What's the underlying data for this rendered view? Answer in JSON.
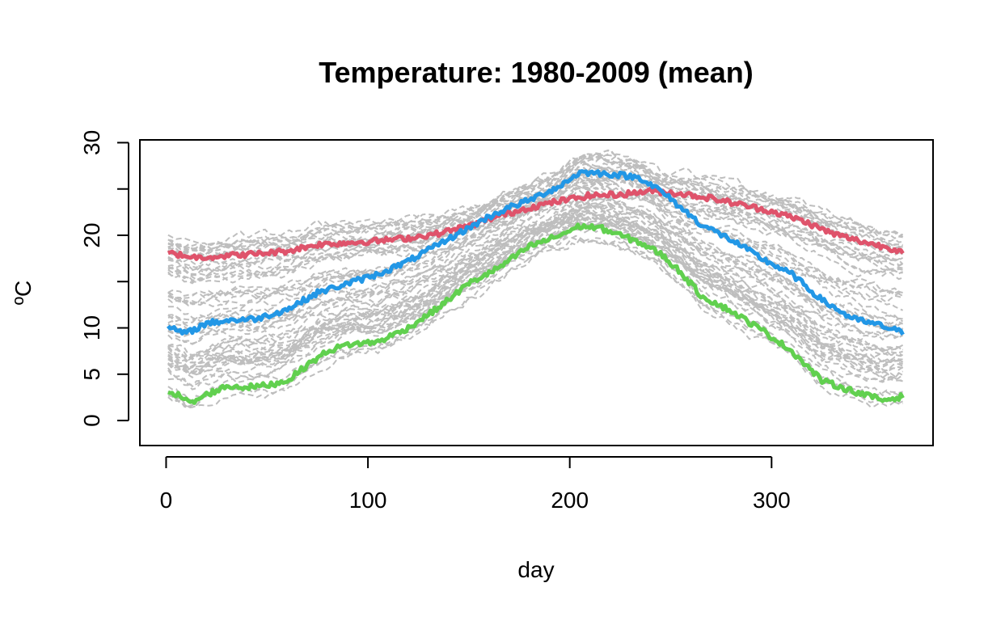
{
  "chart_data": {
    "type": "line",
    "title": "Temperature: 1980-2009 (mean)",
    "xlabel": "day",
    "ylabel": "ºC",
    "xlim": [
      -13,
      380
    ],
    "ylim": [
      -2.7,
      30.3
    ],
    "x_ticks": [
      0,
      100,
      200,
      300
    ],
    "y_ticks": [
      0,
      5,
      10,
      15,
      20,
      25,
      30
    ],
    "y_tick_labels": [
      "0",
      "5",
      "10",
      "",
      "20",
      "",
      "30"
    ],
    "background_series": {
      "description": "many grey dashed station curves between the green and red/blue envelopes",
      "count": 60,
      "color": "#bebebe",
      "style": "dashed"
    },
    "series": [
      {
        "name": "red",
        "color": "#df536b",
        "x": [
          1,
          15,
          30,
          45,
          60,
          75,
          90,
          105,
          120,
          135,
          150,
          165,
          180,
          195,
          210,
          225,
          240,
          255,
          270,
          285,
          300,
          315,
          330,
          345,
          365
        ],
        "y": [
          18.1,
          17.6,
          17.8,
          18.0,
          18.3,
          19.0,
          19.2,
          19.4,
          19.7,
          20.2,
          21.0,
          22.1,
          23.0,
          23.7,
          24.3,
          24.4,
          24.8,
          24.5,
          24.0,
          23.3,
          22.6,
          21.6,
          20.2,
          19.3,
          18.3
        ]
      },
      {
        "name": "blue",
        "color": "#2297e6",
        "x": [
          1,
          10,
          20,
          30,
          45,
          60,
          75,
          90,
          105,
          120,
          135,
          150,
          160,
          170,
          180,
          195,
          205,
          215,
          225,
          235,
          245,
          255,
          265,
          280,
          295,
          310,
          325,
          340,
          355,
          365
        ],
        "y": [
          10.0,
          9.4,
          10.5,
          10.8,
          11.0,
          12.0,
          13.8,
          14.8,
          15.8,
          17.2,
          19.0,
          20.8,
          22.0,
          23.0,
          23.8,
          25.3,
          26.8,
          26.7,
          26.5,
          26.2,
          24.8,
          23.0,
          21.2,
          19.5,
          17.5,
          15.8,
          13.0,
          11.0,
          10.2,
          9.5
        ]
      },
      {
        "name": "green",
        "color": "#61d04f",
        "x": [
          1,
          8,
          12,
          20,
          30,
          40,
          50,
          60,
          70,
          80,
          90,
          105,
          120,
          135,
          150,
          165,
          180,
          195,
          205,
          215,
          225,
          235,
          245,
          255,
          265,
          280,
          295,
          310,
          325,
          340,
          355,
          365
        ],
        "y": [
          3.3,
          2.5,
          1.8,
          2.8,
          3.7,
          3.6,
          3.8,
          4.3,
          6.0,
          7.5,
          8.2,
          8.5,
          10.0,
          12.2,
          14.8,
          16.5,
          18.8,
          20.0,
          21.0,
          20.8,
          20.0,
          19.2,
          18.0,
          16.0,
          13.5,
          11.8,
          9.8,
          7.5,
          4.3,
          3.2,
          2.2,
          2.6
        ]
      }
    ]
  }
}
